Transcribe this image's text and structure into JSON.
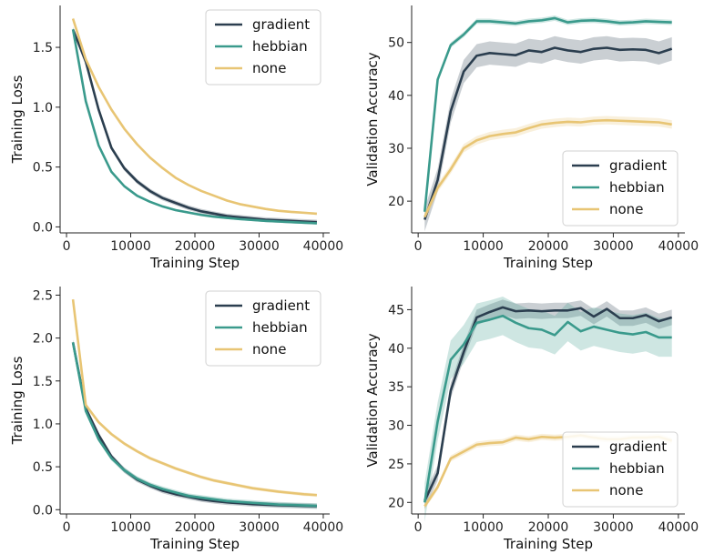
{
  "colors": {
    "gradient": "#2b3e4f",
    "hebbian": "#3a9a8c",
    "none": "#e8c574"
  },
  "chart_data": [
    {
      "type": "line",
      "xlabel": "Training Step",
      "ylabel": "Training Loss",
      "xlim": [
        -1000,
        41000
      ],
      "ylim": [
        -0.05,
        1.85
      ],
      "xticks": [
        0,
        10000,
        20000,
        30000,
        40000
      ],
      "yticks": [
        0.0,
        0.5,
        1.0,
        1.5
      ],
      "legend": "top-right",
      "grid": false,
      "x": [
        1000,
        3000,
        5000,
        7000,
        9000,
        11000,
        13000,
        15000,
        17000,
        19000,
        21000,
        23000,
        25000,
        27000,
        29000,
        31000,
        33000,
        35000,
        37000,
        39000
      ],
      "series": [
        {
          "name": "gradient",
          "values": [
            1.65,
            1.38,
            0.98,
            0.66,
            0.49,
            0.38,
            0.3,
            0.24,
            0.2,
            0.16,
            0.13,
            0.11,
            0.09,
            0.08,
            0.07,
            0.06,
            0.055,
            0.05,
            0.045,
            0.04
          ],
          "band": 0.02
        },
        {
          "name": "hebbian",
          "values": [
            1.65,
            1.05,
            0.68,
            0.46,
            0.34,
            0.26,
            0.21,
            0.17,
            0.14,
            0.12,
            0.1,
            0.085,
            0.075,
            0.065,
            0.058,
            0.05,
            0.045,
            0.04,
            0.035,
            0.03
          ],
          "band": 0.01
        },
        {
          "name": "none",
          "values": [
            1.74,
            1.4,
            1.17,
            0.98,
            0.82,
            0.69,
            0.58,
            0.49,
            0.41,
            0.35,
            0.3,
            0.26,
            0.22,
            0.19,
            0.17,
            0.15,
            0.135,
            0.125,
            0.118,
            0.11
          ],
          "band": 0.01
        }
      ]
    },
    {
      "type": "line",
      "xlabel": "Training Step",
      "ylabel": "Validation Accuracy",
      "xlim": [
        -1000,
        41000
      ],
      "ylim": [
        14,
        57
      ],
      "xticks": [
        0,
        10000,
        20000,
        30000,
        40000
      ],
      "yticks": [
        20,
        30,
        40,
        50
      ],
      "legend": "bottom-right",
      "grid": false,
      "x": [
        1000,
        3000,
        5000,
        7000,
        9000,
        11000,
        13000,
        15000,
        17000,
        19000,
        21000,
        23000,
        25000,
        27000,
        29000,
        31000,
        33000,
        35000,
        37000,
        39000
      ],
      "series": [
        {
          "name": "gradient",
          "values": [
            16.5,
            24.0,
            37.0,
            44.5,
            47.5,
            48.0,
            47.8,
            47.6,
            48.5,
            48.2,
            49.0,
            48.5,
            48.2,
            48.8,
            49.0,
            48.6,
            48.7,
            48.6,
            48.0,
            48.8
          ],
          "band": 2.2
        },
        {
          "name": "hebbian",
          "values": [
            18.0,
            43.0,
            49.5,
            51.5,
            54.0,
            54.0,
            53.8,
            53.6,
            54.0,
            54.2,
            54.6,
            53.8,
            54.1,
            54.2,
            54.0,
            53.7,
            53.8,
            54.0,
            53.9,
            53.8
          ],
          "band": 0.5
        },
        {
          "name": "none",
          "values": [
            17.0,
            22.5,
            26.0,
            30.0,
            31.5,
            32.3,
            32.7,
            33.0,
            33.8,
            34.5,
            34.8,
            35.0,
            34.9,
            35.2,
            35.3,
            35.2,
            35.1,
            35.0,
            34.9,
            34.5
          ],
          "band": 0.8
        }
      ]
    },
    {
      "type": "line",
      "xlabel": "Training Step",
      "ylabel": "Training Loss",
      "xlim": [
        -1000,
        41000
      ],
      "ylim": [
        -0.05,
        2.6
      ],
      "xticks": [
        0,
        10000,
        20000,
        30000,
        40000
      ],
      "yticks": [
        0.0,
        0.5,
        1.0,
        1.5,
        2.0,
        2.5
      ],
      "legend": "top-right",
      "grid": false,
      "x": [
        1000,
        3000,
        5000,
        7000,
        9000,
        11000,
        13000,
        15000,
        17000,
        19000,
        21000,
        23000,
        25000,
        27000,
        29000,
        31000,
        33000,
        35000,
        37000,
        39000
      ],
      "series": [
        {
          "name": "gradient",
          "values": [
            1.95,
            1.18,
            0.87,
            0.62,
            0.46,
            0.35,
            0.28,
            0.22,
            0.18,
            0.15,
            0.12,
            0.1,
            0.085,
            0.075,
            0.065,
            0.058,
            0.052,
            0.048,
            0.044,
            0.04
          ],
          "band": 0.03
        },
        {
          "name": "hebbian",
          "values": [
            1.95,
            1.15,
            0.82,
            0.6,
            0.46,
            0.36,
            0.29,
            0.24,
            0.2,
            0.16,
            0.14,
            0.12,
            0.1,
            0.09,
            0.08,
            0.07,
            0.06,
            0.055,
            0.05,
            0.045
          ],
          "band": 0.03
        },
        {
          "name": "none",
          "values": [
            2.45,
            1.22,
            1.02,
            0.88,
            0.77,
            0.68,
            0.6,
            0.54,
            0.48,
            0.43,
            0.38,
            0.34,
            0.31,
            0.28,
            0.25,
            0.23,
            0.21,
            0.195,
            0.18,
            0.17
          ],
          "band": 0.02
        }
      ]
    },
    {
      "type": "line",
      "xlabel": "Training Step",
      "ylabel": "Validation Accuracy",
      "xlim": [
        -1000,
        41000
      ],
      "ylim": [
        18.5,
        48
      ],
      "xticks": [
        0,
        10000,
        20000,
        30000,
        40000
      ],
      "yticks": [
        20,
        25,
        30,
        35,
        40,
        45
      ],
      "legend": "bottom-right",
      "grid": false,
      "x": [
        1000,
        3000,
        5000,
        7000,
        9000,
        11000,
        13000,
        15000,
        17000,
        19000,
        21000,
        23000,
        25000,
        27000,
        29000,
        31000,
        33000,
        35000,
        37000,
        39000
      ],
      "series": [
        {
          "name": "gradient",
          "values": [
            20.2,
            23.8,
            34.5,
            39.5,
            44.0,
            44.7,
            45.3,
            44.8,
            44.9,
            44.8,
            44.9,
            44.9,
            45.2,
            44.1,
            45.1,
            43.9,
            43.9,
            44.3,
            43.5,
            44.0
          ],
          "band": 1.0
        },
        {
          "name": "hebbian",
          "values": [
            20.0,
            30.5,
            38.5,
            40.5,
            43.3,
            43.7,
            44.2,
            43.3,
            42.6,
            42.4,
            41.7,
            43.4,
            42.2,
            42.8,
            42.4,
            42.0,
            41.8,
            42.1,
            41.4,
            41.4
          ],
          "band": 2.5
        },
        {
          "name": "none",
          "values": [
            19.5,
            22.0,
            25.7,
            26.6,
            27.5,
            27.7,
            27.8,
            28.4,
            28.2,
            28.5,
            28.4,
            28.5,
            28.7,
            28.4,
            28.2,
            28.2,
            28.4,
            28.4,
            28.5,
            28.0
          ],
          "band": 0.4
        }
      ]
    }
  ]
}
